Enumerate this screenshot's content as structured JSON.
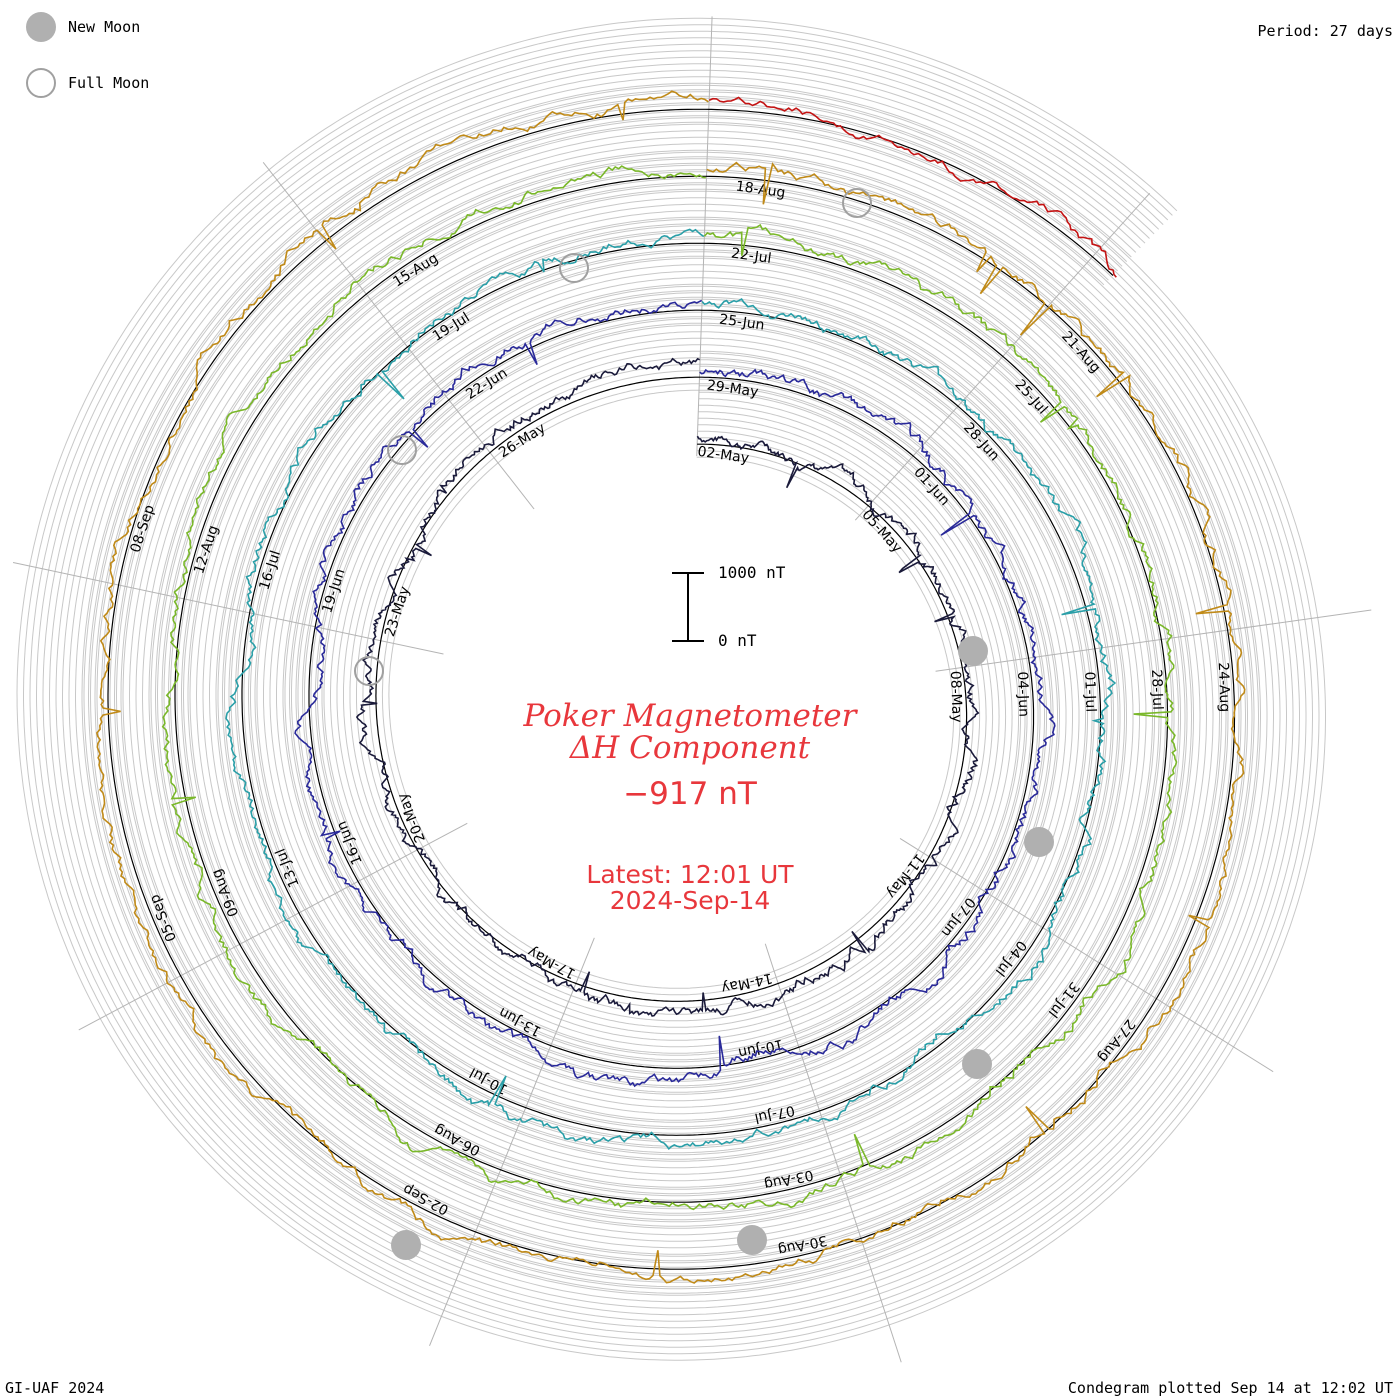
{
  "legend": {
    "new_moon_label": "New Moon",
    "full_moon_label": "Full Moon"
  },
  "period_label": "Period: 27 days",
  "scale": {
    "top_label": "1000 nT",
    "bottom_label": "0 nT"
  },
  "title": {
    "line1": "Poker Magnetometer",
    "line2": "ΔH Component",
    "value": "−917 nT",
    "latest_time": "Latest: 12:01 UT",
    "latest_date": "2024-Sep-14"
  },
  "footer": {
    "left": "GI-UAF 2024",
    "right": "Condegram plotted Sep 14 at 12:02 UT"
  },
  "colors": {
    "text_red": "#e8373c",
    "ring_gray": "#c8c8c8",
    "spoke_gray": "#b4b4b4",
    "baseline": "#000000",
    "moon_gray": "#b0b0b0"
  },
  "chart_data": {
    "type": "line",
    "title": "Poker Magnetometer ΔH Component",
    "period_days": 27,
    "units": "nT",
    "latest_value": -917,
    "series": [
      {
        "color": "#1a1a3a",
        "date_labels": [
          "02-May",
          "05-May",
          "08-May",
          "11-May",
          "14-May",
          "17-May",
          "20-May",
          "23-May",
          "26-May"
        ]
      },
      {
        "color": "#2a2a9a",
        "date_labels": [
          "29-May",
          "01-Jun",
          "04-Jun",
          "07-Jun",
          "10-Jun",
          "13-Jun",
          "16-Jun",
          "19-Jun",
          "22-Jun"
        ]
      },
      {
        "color": "#2a9fa8",
        "date_labels": [
          "25-Jun",
          "28-Jun",
          "01-Jul",
          "04-Jul",
          "07-Jul",
          "10-Jul",
          "13-Jul",
          "16-Jul",
          "19-Jul"
        ]
      },
      {
        "color": "#7ab82a",
        "date_labels": [
          "22-Jul",
          "25-Jul",
          "28-Jul",
          "31-Jul",
          "03-Aug",
          "06-Aug",
          "09-Aug",
          "12-Aug",
          "15-Aug"
        ]
      },
      {
        "color": "#c08a18",
        "date_labels": [
          "18-Aug",
          "21-Aug",
          "24-Aug",
          "27-Aug",
          "30-Aug",
          "02-Sep",
          "05-Sep",
          "08-Sep"
        ]
      },
      {
        "color": "#c41414",
        "date_labels": []
      }
    ]
  }
}
